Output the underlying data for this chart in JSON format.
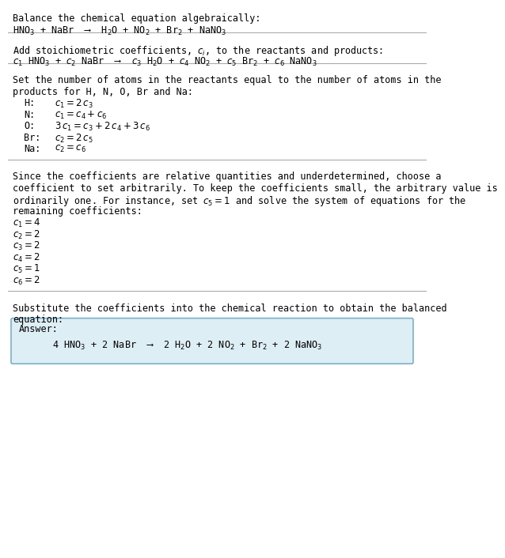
{
  "title_text": "Balance the chemical equation algebraically:",
  "eq1": "HNO$_3$ + NaBr  ⟶  H$_2$O + NO$_2$ + Br$_2$ + NaNO$_3$",
  "section2_intro": "Add stoichiometric coefficients, $c_i$, to the reactants and products:",
  "eq2": "$c_1$ HNO$_3$ + $c_2$ NaBr  ⟶  $c_3$ H$_2$O + $c_4$ NO$_2$ + $c_5$ Br$_2$ + $c_6$ NaNO$_3$",
  "section3_intro1": "Set the number of atoms in the reactants equal to the number of atoms in the",
  "section3_intro2": "products for H, N, O, Br and Na:",
  "equations": [
    [
      "H:",
      "  $c_1 = 2\\,c_3$"
    ],
    [
      "N:",
      "  $c_1 = c_4 + c_6$"
    ],
    [
      "O:",
      "  $3\\,c_1 = c_3 + 2\\,c_4 + 3\\,c_6$"
    ],
    [
      "Br:",
      "  $c_2 = 2\\,c_5$"
    ],
    [
      "Na:",
      "  $c_2 = c_6$"
    ]
  ],
  "section4_text1": "Since the coefficients are relative quantities and underdetermined, choose a",
  "section4_text2": "coefficient to set arbitrarily. To keep the coefficients small, the arbitrary value is",
  "section4_text3": "ordinarily one. For instance, set $c_5 = 1$ and solve the system of equations for the",
  "section4_text4": "remaining coefficients:",
  "coefficients": [
    "$c_1 = 4$",
    "$c_2 = 2$",
    "$c_3 = 2$",
    "$c_4 = 2$",
    "$c_5 = 1$",
    "$c_6 = 2$"
  ],
  "section5_text1": "Substitute the coefficients into the chemical reaction to obtain the balanced",
  "section5_text2": "equation:",
  "answer_label": "Answer:",
  "answer_eq": "      4 HNO$_3$ + 2 NaBr  ⟶  2 H$_2$O + 2 NO$_2$ + Br$_2$ + 2 NaNO$_3$",
  "bg_color": "#ffffff",
  "answer_box_color": "#deeef5",
  "answer_box_edge": "#7ab0c8",
  "text_color": "#000000",
  "font_size": 8.5,
  "mono_font": "DejaVu Sans Mono"
}
